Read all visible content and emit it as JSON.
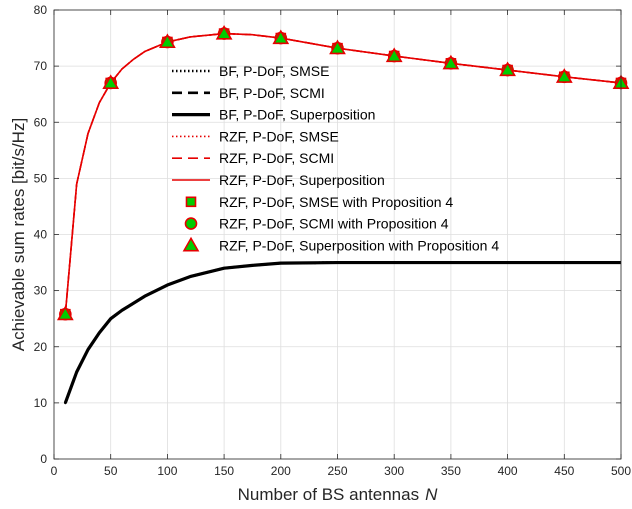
{
  "chart_data": {
    "type": "line",
    "xlabel": "Number of BS antennas",
    "xlabel_var": "N",
    "ylabel": "Achievable sum rates [bit/s/Hz]",
    "xlim": [
      0,
      500
    ],
    "ylim": [
      0,
      80
    ],
    "xticks": [
      0,
      50,
      100,
      150,
      200,
      250,
      300,
      350,
      400,
      450,
      500
    ],
    "yticks": [
      0,
      10,
      20,
      30,
      40,
      50,
      60,
      70,
      80
    ],
    "grid": true,
    "legend_position": "upper-center",
    "colors": {
      "black": "#000000",
      "red": "#e60000",
      "marker_fill": "#00cc00"
    },
    "series": [
      {
        "name": "BF, P-DoF, SMSE",
        "color": "#000000",
        "style": "dotted",
        "marker": "none",
        "x": [
          10,
          20,
          30,
          40,
          50,
          60,
          80,
          100,
          120,
          150,
          175,
          200,
          250,
          300,
          350,
          400,
          450,
          500
        ],
        "y": [
          10,
          15.5,
          19.5,
          22.5,
          25,
          26.5,
          29,
          31,
          32.5,
          34,
          34.5,
          34.9,
          35,
          35,
          35,
          35,
          35,
          35
        ]
      },
      {
        "name": "BF, P-DoF, SCMI",
        "color": "#000000",
        "style": "dashed",
        "marker": "none",
        "x": [
          10,
          20,
          30,
          40,
          50,
          60,
          80,
          100,
          120,
          150,
          175,
          200,
          250,
          300,
          350,
          400,
          450,
          500
        ],
        "y": [
          10,
          15.5,
          19.5,
          22.5,
          25,
          26.5,
          29,
          31,
          32.5,
          34,
          34.5,
          34.9,
          35,
          35,
          35,
          35,
          35,
          35
        ]
      },
      {
        "name": "BF, P-DoF, Superposition",
        "color": "#000000",
        "style": "solid",
        "marker": "none",
        "x": [
          10,
          20,
          30,
          40,
          50,
          60,
          80,
          100,
          120,
          150,
          175,
          200,
          250,
          300,
          350,
          400,
          450,
          500
        ],
        "y": [
          10,
          15.5,
          19.5,
          22.5,
          25,
          26.5,
          29,
          31,
          32.5,
          34,
          34.5,
          34.9,
          35,
          35,
          35,
          35,
          35,
          35
        ]
      },
      {
        "name": "RZF, P-DoF,  SMSE",
        "color": "#e60000",
        "style": "dotted",
        "marker": "none",
        "x": [
          10,
          20,
          30,
          40,
          50,
          60,
          70,
          80,
          100,
          120,
          150,
          175,
          200,
          250,
          300,
          350,
          400,
          450,
          500
        ],
        "y": [
          25.8,
          49,
          58,
          63.5,
          67,
          69.5,
          71.2,
          72.6,
          74.3,
          75.2,
          75.8,
          75.6,
          75,
          73.2,
          71.8,
          70.5,
          69.3,
          68.1,
          67
        ]
      },
      {
        "name": "RZF, P-DoF, SCMI",
        "color": "#e60000",
        "style": "dashed",
        "marker": "none",
        "x": [
          10,
          20,
          30,
          40,
          50,
          60,
          70,
          80,
          100,
          120,
          150,
          175,
          200,
          250,
          300,
          350,
          400,
          450,
          500
        ],
        "y": [
          25.8,
          49,
          58,
          63.5,
          67,
          69.5,
          71.2,
          72.6,
          74.3,
          75.2,
          75.8,
          75.6,
          75,
          73.2,
          71.8,
          70.5,
          69.3,
          68.1,
          67
        ]
      },
      {
        "name": "RZF, P-DoF, Superposition",
        "color": "#e60000",
        "style": "solid",
        "marker": "none",
        "x": [
          10,
          20,
          30,
          40,
          50,
          60,
          70,
          80,
          100,
          120,
          150,
          175,
          200,
          250,
          300,
          350,
          400,
          450,
          500
        ],
        "y": [
          25.8,
          49,
          58,
          63.5,
          67,
          69.5,
          71.2,
          72.6,
          74.3,
          75.2,
          75.8,
          75.6,
          75,
          73.2,
          71.8,
          70.5,
          69.3,
          68.1,
          67
        ]
      },
      {
        "name": "RZF, P-DoF, SMSE with Proposition 4",
        "color": "#e60000",
        "style": "none",
        "marker": "square",
        "x": [
          10,
          50,
          100,
          150,
          200,
          250,
          300,
          350,
          400,
          450,
          500
        ],
        "y": [
          25.8,
          67,
          74.3,
          75.8,
          75,
          73.2,
          71.8,
          70.5,
          69.3,
          68.1,
          67
        ]
      },
      {
        "name": "RZF, P-DoF, SCMI with Proposition 4",
        "color": "#e60000",
        "style": "none",
        "marker": "circle",
        "x": [
          10,
          50,
          100,
          150,
          200,
          250,
          300,
          350,
          400,
          450,
          500
        ],
        "y": [
          25.8,
          67,
          74.3,
          75.8,
          75,
          73.2,
          71.8,
          70.5,
          69.3,
          68.1,
          67
        ]
      },
      {
        "name": "RZF, P-DoF, Superposition with Proposition 4",
        "color": "#e60000",
        "style": "none",
        "marker": "triangle",
        "x": [
          10,
          50,
          100,
          150,
          200,
          250,
          300,
          350,
          400,
          450,
          500
        ],
        "y": [
          25.8,
          67,
          74.3,
          75.8,
          75,
          73.2,
          71.8,
          70.5,
          69.3,
          68.1,
          67
        ]
      }
    ]
  }
}
